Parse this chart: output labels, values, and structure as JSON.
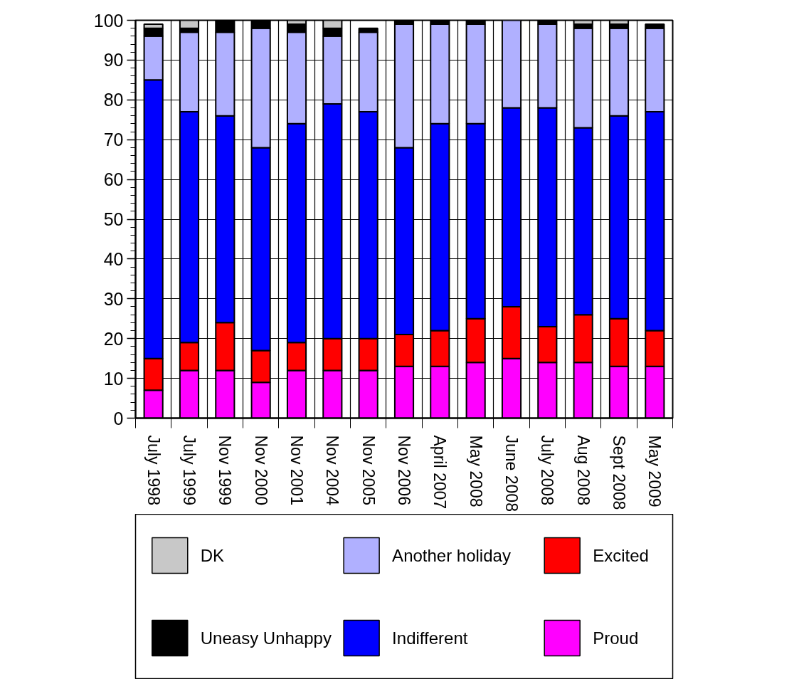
{
  "chart_data": {
    "type": "bar",
    "stacked": true,
    "categories": [
      "July 1998",
      "July 1999",
      "Nov 1999",
      "Nov 2000",
      "Nov 2001",
      "Nov 2004",
      "Nov 2005",
      "Nov 2006",
      "April 2007",
      "May 2008",
      "June 2008",
      "July 2008",
      "Aug 2008",
      "Sept 2008",
      "May 2009"
    ],
    "series": [
      {
        "name": "Proud",
        "color": "#ff00ff",
        "values": [
          7,
          12,
          12,
          9,
          12,
          12,
          12,
          13,
          13,
          14,
          15,
          14,
          14,
          13,
          13
        ]
      },
      {
        "name": "Excited",
        "color": "#ff0000",
        "values": [
          8,
          7,
          12,
          8,
          7,
          8,
          8,
          8,
          9,
          11,
          13,
          9,
          12,
          12,
          9
        ]
      },
      {
        "name": "Indifferent",
        "color": "#0000ff",
        "values": [
          70,
          58,
          52,
          51,
          55,
          59,
          57,
          47,
          52,
          49,
          50,
          55,
          47,
          51,
          55
        ]
      },
      {
        "name": "Another holiday",
        "color": "#b0b0ff",
        "values": [
          11,
          20,
          21,
          30,
          23,
          17,
          20,
          31,
          25,
          25,
          22,
          21,
          25,
          22,
          21
        ]
      },
      {
        "name": "Uneasy Unhappy",
        "color": "#000000",
        "values": [
          2,
          1,
          3,
          2,
          2,
          2,
          1,
          1,
          1,
          1,
          null,
          1,
          1,
          1,
          1
        ]
      },
      {
        "name": "DK",
        "color": "#c8c8c8",
        "values": [
          1,
          2,
          null,
          null,
          1,
          2,
          null,
          null,
          null,
          null,
          null,
          null,
          1,
          1,
          null
        ]
      }
    ],
    "ylim": [
      0,
      100
    ],
    "yticks": [
      0,
      10,
      20,
      30,
      40,
      50,
      60,
      70,
      80,
      90,
      100
    ],
    "grid": true,
    "legend": "bottom"
  }
}
